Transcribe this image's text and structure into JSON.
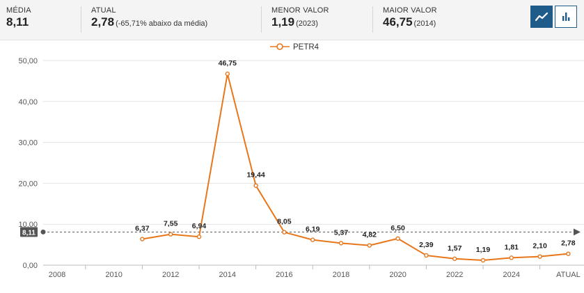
{
  "header": {
    "media": {
      "label": "MÉDIA",
      "value": "8,11"
    },
    "atual": {
      "label": "ATUAL",
      "value": "2,78",
      "note": "(-65,71% abaixo da média)"
    },
    "menor": {
      "label": "MENOR VALOR",
      "value": "1,19",
      "note": "(2023)"
    },
    "maior": {
      "label": "MAIOR VALOR",
      "value": "46,75",
      "note": "(2014)"
    }
  },
  "controls": {
    "line_chart_icon": "line-chart-icon",
    "bar_chart_icon": "bar-chart-icon"
  },
  "chart_data": {
    "type": "line",
    "legend": "PETR4",
    "series": [
      {
        "name": "PETR4",
        "color": "#e8761a",
        "values": [
          6.37,
          7.55,
          6.94,
          46.75,
          19.44,
          8.05,
          6.19,
          5.37,
          4.82,
          6.5,
          2.39,
          1.57,
          1.19,
          1.81,
          2.1,
          2.78
        ],
        "labels": [
          "6,37",
          "7,55",
          "6,94",
          "46,75",
          "19,44",
          "8,05",
          "6,19",
          "5,37",
          "4,82",
          "6,50",
          "2,39",
          "1,57",
          "1,19",
          "1,81",
          "2,10",
          "2,78"
        ]
      }
    ],
    "x_ticks": [
      "2008",
      "2010",
      "2012",
      "2014",
      "2016",
      "2018",
      "2020",
      "2022",
      "2024",
      "ATUAL"
    ],
    "y_ticks": [
      "0,00",
      "10,00",
      "20,00",
      "30,00",
      "40,00",
      "50,00"
    ],
    "ylim": [
      0,
      50
    ],
    "average": {
      "value": 8.11,
      "label": "8,11"
    }
  }
}
